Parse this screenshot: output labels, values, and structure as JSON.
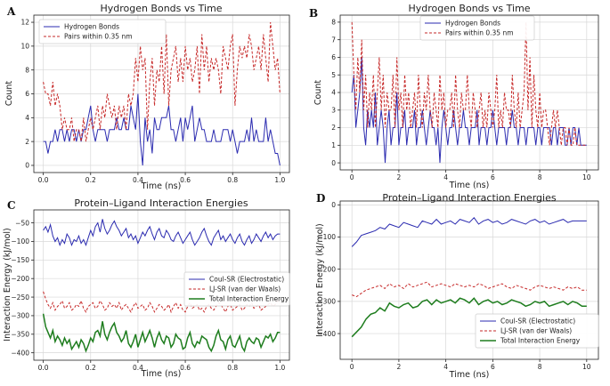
{
  "colors": {
    "blue": "#2b2bb0",
    "red": "#c62828",
    "green": "#1e7d1e",
    "grid": "#d8d8d8",
    "frame": "#222222"
  },
  "chart_data": [
    {
      "panel": "A",
      "type": "line",
      "title": "Hydrogen Bonds vs Time",
      "xlabel": "Time (ns)",
      "ylabel": "Count",
      "xlim": [
        -0.04,
        1.04
      ],
      "ylim": [
        -0.6,
        12.6
      ],
      "xticks": [
        0.0,
        0.2,
        0.4,
        0.6,
        0.8,
        1.0
      ],
      "xtick_labels": [
        "0.0",
        "0.2",
        "0.4",
        "0.6",
        "0.8",
        "1.0"
      ],
      "yticks": [
        0,
        2,
        4,
        6,
        8,
        10,
        12
      ],
      "ytick_labels": [
        "0",
        "2",
        "4",
        "6",
        "8",
        "10",
        "12"
      ],
      "legend": "top-left",
      "grid": true,
      "x": {
        "start": 0.0,
        "end": 1.0
      },
      "series": [
        {
          "name": "Hydrogen Bonds",
          "style": "solid",
          "color": "blue",
          "values": [
            2,
            2,
            1,
            2,
            2,
            3,
            2,
            3,
            3,
            2,
            3,
            2,
            3,
            3,
            2,
            3,
            2,
            3,
            3,
            4,
            5,
            3,
            2,
            3,
            3,
            3,
            3,
            2,
            3,
            3,
            3,
            4,
            3,
            3,
            4,
            3,
            3,
            5,
            4,
            3,
            6,
            2,
            0,
            4,
            2,
            3,
            1,
            4,
            3,
            3,
            4,
            4,
            4,
            5,
            3,
            3,
            2,
            3,
            4,
            2,
            4,
            3,
            4,
            5,
            2,
            3,
            4,
            3,
            3,
            2,
            2,
            2,
            3,
            2,
            2,
            2,
            3,
            3,
            3,
            2,
            3,
            2,
            1,
            2,
            2,
            2,
            3,
            2,
            4,
            2,
            3,
            2,
            2,
            2,
            4,
            2,
            3,
            2,
            1,
            1,
            0
          ]
        },
        {
          "name": "Pairs within 0.35 nm",
          "style": "dashed",
          "color": "red",
          "values": [
            7,
            6,
            6,
            5,
            7,
            5,
            6,
            5,
            3,
            4,
            3,
            3,
            4,
            2,
            3,
            3,
            2,
            4,
            2,
            3,
            4,
            3,
            4,
            5,
            3,
            5,
            4,
            6,
            5,
            4,
            5,
            3,
            5,
            4,
            5,
            3,
            6,
            5,
            6,
            9,
            7,
            10,
            8,
            9,
            3,
            7,
            9,
            5,
            8,
            7,
            10,
            6,
            11,
            5,
            8,
            9,
            10,
            7,
            9,
            7,
            10,
            8,
            9,
            7,
            8,
            10,
            6,
            11,
            8,
            10,
            7,
            9,
            8,
            9,
            8,
            6,
            10,
            9,
            8,
            10,
            11,
            5,
            8,
            10,
            9,
            10,
            9,
            11,
            10,
            8,
            9,
            10,
            8,
            11,
            9,
            7,
            12,
            10,
            8,
            9,
            6
          ]
        }
      ]
    },
    {
      "panel": "B",
      "type": "line",
      "title": "Hydrogen Bonds vs Time",
      "xlabel": "Time (ns)",
      "ylabel": "Count",
      "xlim": [
        -0.5,
        10.5
      ],
      "ylim": [
        -0.4,
        8.4
      ],
      "xticks": [
        0,
        2,
        4,
        6,
        8,
        10
      ],
      "xtick_labels": [
        "0",
        "2",
        "4",
        "6",
        "8",
        "10"
      ],
      "yticks": [
        0,
        1,
        2,
        3,
        4,
        5,
        6,
        7,
        8
      ],
      "ytick_labels": [
        "0",
        "1",
        "2",
        "3",
        "4",
        "5",
        "6",
        "7",
        "8"
      ],
      "legend": "top-center",
      "grid": true,
      "x": {
        "start": 0,
        "end": 10
      },
      "series": [
        {
          "name": "Hydrogen Bonds",
          "style": "solid",
          "color": "blue",
          "values": [
            4,
            5,
            2,
            3,
            4,
            6,
            2,
            1,
            3,
            2,
            3,
            2,
            4,
            1,
            2,
            3,
            2,
            0,
            2,
            3,
            1,
            2,
            2,
            4,
            1,
            2,
            2,
            3,
            1,
            2,
            2,
            2,
            3,
            1,
            2,
            2,
            3,
            2,
            1,
            2,
            3,
            2,
            2,
            1,
            2,
            0,
            2,
            3,
            2,
            1,
            2,
            2,
            3,
            2,
            1,
            2,
            2,
            3,
            2,
            2,
            1,
            2,
            2,
            2,
            3,
            1,
            2,
            2,
            2,
            1,
            2,
            2,
            3,
            2,
            1,
            2,
            2,
            2,
            2,
            1,
            2,
            2,
            3,
            2,
            2,
            1,
            2,
            2,
            2,
            1,
            2,
            2,
            2,
            2,
            1,
            2,
            2,
            1,
            2,
            2,
            2,
            2,
            1,
            2,
            2,
            1,
            2,
            2,
            2,
            1,
            1,
            2,
            1,
            2,
            2,
            1,
            2,
            1,
            1,
            1,
            1
          ]
        },
        {
          "name": "Pairs within 0.35 nm",
          "style": "dashed",
          "color": "red",
          "values": [
            8,
            5,
            3,
            6,
            4,
            7,
            3,
            5,
            2,
            4,
            3,
            5,
            2,
            4,
            6,
            3,
            5,
            2,
            4,
            3,
            3,
            5,
            2,
            6,
            3,
            4,
            2,
            5,
            3,
            4,
            2,
            3,
            4,
            2,
            5,
            3,
            2,
            4,
            3,
            5,
            3,
            2,
            4,
            3,
            2,
            5,
            3,
            4,
            2,
            3,
            3,
            4,
            2,
            5,
            3,
            2,
            4,
            3,
            3,
            5,
            3,
            2,
            4,
            3,
            2,
            3,
            4,
            2,
            3,
            2,
            4,
            3,
            2,
            3,
            5,
            2,
            3,
            2,
            4,
            3,
            3,
            2,
            5,
            3,
            2,
            4,
            2,
            3,
            4,
            8,
            3,
            6,
            2,
            5,
            3,
            2,
            4,
            2,
            3,
            3,
            2,
            1,
            2,
            3,
            2,
            3,
            2,
            1,
            2,
            2,
            1,
            2,
            1,
            1,
            2,
            1,
            1,
            1,
            1,
            1,
            1
          ]
        }
      ]
    },
    {
      "panel": "C",
      "type": "line",
      "title": "Protein–Ligand Interaction Energies",
      "xlabel": "Time (ns)",
      "ylabel": "Interaction Energy (kJ/mol)",
      "xlim": [
        -0.04,
        1.04
      ],
      "ylim": [
        -420,
        -15
      ],
      "xticks": [
        0.0,
        0.2,
        0.4,
        0.6,
        0.8,
        1.0
      ],
      "xtick_labels": [
        "0.0",
        "0.2",
        "0.4",
        "0.6",
        "0.8",
        "1.0"
      ],
      "yticks": [
        -400,
        -350,
        -300,
        -250,
        -200,
        -150,
        -100,
        -50
      ],
      "ytick_labels": [
        "−400",
        "−350",
        "−300",
        "−250",
        "−200",
        "−150",
        "−100",
        "−50"
      ],
      "legend": "center-right",
      "grid": true,
      "x": {
        "start": 0.0,
        "end": 1.0
      },
      "series": [
        {
          "name": "Coul-SR (Electrostatic)",
          "style": "solid",
          "color": "blue",
          "values": [
            -70,
            -60,
            -75,
            -55,
            -85,
            -100,
            -90,
            -110,
            -95,
            -105,
            -80,
            -90,
            -110,
            -95,
            -100,
            -85,
            -105,
            -95,
            -110,
            -90,
            -70,
            -85,
            -60,
            -50,
            -75,
            -40,
            -65,
            -80,
            -70,
            -55,
            -45,
            -60,
            -70,
            -85,
            -75,
            -65,
            -90,
            -80,
            -95,
            -85,
            -105,
            -90,
            -75,
            -85,
            -70,
            -60,
            -80,
            -95,
            -75,
            -65,
            -85,
            -90,
            -70,
            -80,
            -95,
            -100,
            -85,
            -75,
            -90,
            -105,
            -95,
            -85,
            -75,
            -95,
            -110,
            -100,
            -90,
            -75,
            -65,
            -85,
            -100,
            -110,
            -90,
            -80,
            -70,
            -95,
            -85,
            -100,
            -90,
            -80,
            -95,
            -105,
            -90,
            -80,
            -100,
            -110,
            -95,
            -85,
            -105,
            -95,
            -80,
            -90,
            -100,
            -85,
            -75,
            -90,
            -80,
            -95,
            -85,
            -80,
            -80
          ]
        },
        {
          "name": "LJ-SR (van der Waals)",
          "style": "dashed",
          "color": "red",
          "values": [
            -235,
            -255,
            -270,
            -280,
            -265,
            -285,
            -275,
            -270,
            -260,
            -280,
            -275,
            -265,
            -285,
            -280,
            -270,
            -275,
            -260,
            -280,
            -290,
            -275,
            -270,
            -265,
            -280,
            -275,
            -260,
            -270,
            -285,
            -280,
            -265,
            -275,
            -270,
            -280,
            -265,
            -285,
            -275,
            -270,
            -280,
            -290,
            -275,
            -265,
            -280,
            -275,
            -270,
            -285,
            -280,
            -265,
            -275,
            -290,
            -280,
            -270,
            -275,
            -285,
            -280,
            -270,
            -290,
            -275,
            -265,
            -280,
            -270,
            -285,
            -290,
            -275,
            -265,
            -280,
            -275,
            -270,
            -285,
            -280,
            -290,
            -275,
            -270,
            -280,
            -285,
            -275,
            -265,
            -270,
            -280,
            -290,
            -275,
            -270,
            -285,
            -280,
            -275,
            -270,
            -285,
            -280,
            -270,
            -275,
            -265,
            -280,
            -275,
            -270,
            -285,
            -280,
            -275,
            -270,
            -265,
            -275,
            -270,
            -260,
            -265
          ]
        },
        {
          "name": "Total Interaction Energy",
          "style": "solid",
          "color": "green",
          "values": [
            -295,
            -330,
            -345,
            -360,
            -340,
            -370,
            -355,
            -365,
            -380,
            -360,
            -375,
            -365,
            -390,
            -380,
            -370,
            -385,
            -365,
            -375,
            -395,
            -380,
            -360,
            -370,
            -345,
            -340,
            -355,
            -315,
            -350,
            -365,
            -345,
            -330,
            -320,
            -345,
            -355,
            -370,
            -360,
            -340,
            -375,
            -385,
            -370,
            -350,
            -385,
            -365,
            -345,
            -370,
            -355,
            -340,
            -360,
            -385,
            -360,
            -345,
            -365,
            -375,
            -355,
            -360,
            -385,
            -375,
            -350,
            -360,
            -365,
            -390,
            -385,
            -360,
            -345,
            -375,
            -385,
            -370,
            -375,
            -355,
            -360,
            -365,
            -385,
            -395,
            -380,
            -355,
            -340,
            -365,
            -370,
            -390,
            -365,
            -355,
            -380,
            -385,
            -370,
            -355,
            -385,
            -395,
            -370,
            -360,
            -370,
            -375,
            -360,
            -365,
            -385,
            -370,
            -355,
            -360,
            -350,
            -370,
            -360,
            -345,
            -345
          ]
        }
      ]
    },
    {
      "panel": "D",
      "type": "line",
      "title": "Protein–Ligand Interaction Energies",
      "xlabel": "Time (ns)",
      "ylabel": "Interaction Energy (kJ/mol)",
      "xlim": [
        -0.5,
        10.5
      ],
      "ylim": [
        -480,
        12
      ],
      "xticks": [
        0,
        2,
        4,
        6,
        8,
        10
      ],
      "xtick_labels": [
        "0",
        "2",
        "4",
        "6",
        "8",
        "10"
      ],
      "yticks": [
        -400,
        -300,
        -200,
        -100,
        0
      ],
      "ytick_labels": [
        "−400",
        "−300",
        "−200",
        "−100",
        "0"
      ],
      "legend": "bottom-right",
      "grid": true,
      "x": {
        "start": 0,
        "end": 10
      },
      "series": [
        {
          "name": "Coul-SR (Electrostatic)",
          "style": "solid",
          "color": "blue",
          "values": [
            -130,
            -115,
            -95,
            -90,
            -85,
            -80,
            -70,
            -75,
            -60,
            -65,
            -70,
            -55,
            -60,
            -65,
            -70,
            -50,
            -55,
            -60,
            -45,
            -60,
            -55,
            -50,
            -60,
            -45,
            -50,
            -55,
            -40,
            -60,
            -50,
            -45,
            -55,
            -50,
            -60,
            -55,
            -45,
            -50,
            -55,
            -60,
            -50,
            -45,
            -55,
            -50,
            -60,
            -55,
            -50,
            -45,
            -55,
            -50,
            -50,
            -50,
            -50
          ]
        },
        {
          "name": "LJ-SR (van der Waals)",
          "style": "dashed",
          "color": "red",
          "values": [
            -280,
            -285,
            -275,
            -265,
            -260,
            -255,
            -250,
            -260,
            -245,
            -255,
            -250,
            -260,
            -245,
            -255,
            -250,
            -245,
            -240,
            -255,
            -250,
            -245,
            -250,
            -255,
            -245,
            -250,
            -255,
            -250,
            -255,
            -245,
            -250,
            -260,
            -255,
            -250,
            -245,
            -255,
            -260,
            -250,
            -255,
            -260,
            -265,
            -255,
            -250,
            -255,
            -260,
            -255,
            -260,
            -265,
            -255,
            -260,
            -255,
            -265,
            -265
          ]
        },
        {
          "name": "Total Interaction Energy",
          "style": "solid",
          "color": "green",
          "values": [
            -410,
            -395,
            -380,
            -355,
            -340,
            -335,
            -320,
            -330,
            -305,
            -315,
            -320,
            -310,
            -305,
            -320,
            -315,
            -300,
            -295,
            -310,
            -295,
            -305,
            -300,
            -295,
            -305,
            -290,
            -295,
            -305,
            -290,
            -310,
            -300,
            -295,
            -305,
            -300,
            -310,
            -305,
            -295,
            -300,
            -305,
            -315,
            -310,
            -300,
            -305,
            -300,
            -315,
            -310,
            -305,
            -300,
            -310,
            -300,
            -305,
            -315,
            -315
          ]
        }
      ]
    }
  ]
}
